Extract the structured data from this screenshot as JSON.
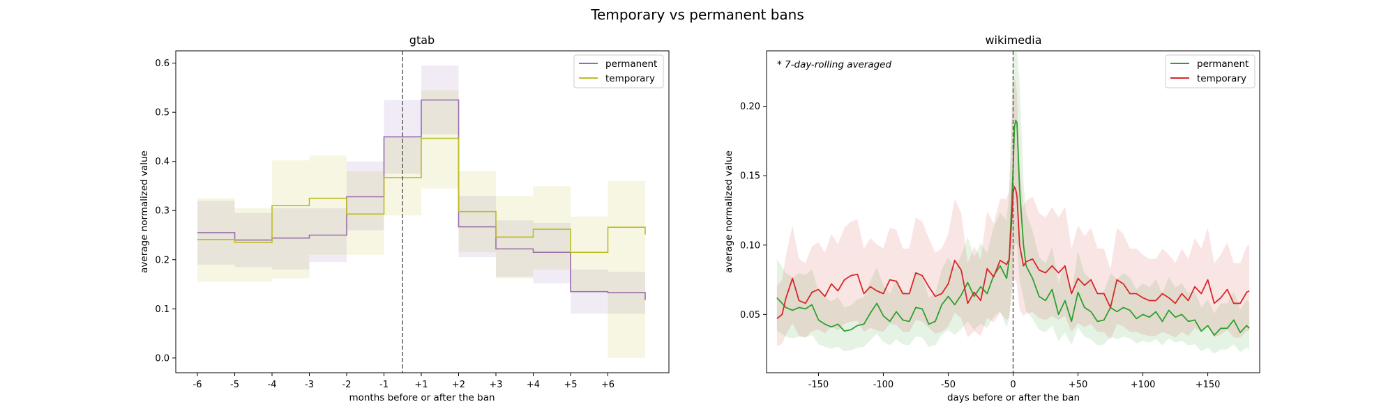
{
  "figure_title": "Temporary vs permanent bans",
  "colors": {
    "gtab_permanent": "#9467bd",
    "gtab_temporary": "#bcbd22",
    "wiki_permanent": "#2ca02c",
    "wiki_temporary": "#d62728"
  },
  "chart_data": [
    {
      "type": "line",
      "title": "gtab",
      "xlabel": "months before or after the ban",
      "ylabel": "average normalized value",
      "categories": [
        "-6",
        "-5",
        "-4",
        "-3",
        "-2",
        "-1",
        "+1",
        "+2",
        "+3",
        "+4",
        "+5",
        "+6"
      ],
      "ylim": [
        -0.03,
        0.625
      ],
      "yticks": [
        "0.0",
        "0.1",
        "0.2",
        "0.3",
        "0.4",
        "0.5",
        "0.6"
      ],
      "marker_line": "ban",
      "step": true,
      "legend": "top-right",
      "series": [
        {
          "name": "permanent",
          "values": [
            0.255,
            0.24,
            0.244,
            0.25,
            0.328,
            0.45,
            0.525,
            0.267,
            0.222,
            0.215,
            0.135,
            0.133
          ],
          "lower": [
            0.19,
            0.185,
            0.18,
            0.195,
            0.26,
            0.375,
            0.455,
            0.205,
            0.165,
            0.152,
            0.09,
            0.09
          ],
          "upper": [
            0.32,
            0.295,
            0.305,
            0.305,
            0.4,
            0.525,
            0.595,
            0.33,
            0.28,
            0.275,
            0.18,
            0.175
          ]
        },
        {
          "name": "temporary",
          "values": [
            0.241,
            0.235,
            0.31,
            0.325,
            0.293,
            0.367,
            0.447,
            0.298,
            0.246,
            0.262,
            0.215,
            0.266
          ],
          "lower": [
            0.155,
            0.155,
            0.162,
            0.21,
            0.21,
            0.29,
            0.345,
            0.215,
            0.162,
            0.18,
            0.135,
            0.0
          ],
          "upper": [
            0.325,
            0.305,
            0.402,
            0.412,
            0.38,
            0.45,
            0.545,
            0.38,
            0.33,
            0.35,
            0.288,
            0.36
          ]
        }
      ]
    },
    {
      "type": "line",
      "title": "wikimedia",
      "xlabel": "days before or after the ban",
      "ylabel": "average normalized value",
      "annotation": "* 7-day-rolling averaged",
      "xlim": [
        -190,
        190
      ],
      "ylim": [
        0.008,
        0.24
      ],
      "xticks": [
        -150,
        -100,
        -50,
        0,
        50,
        100,
        150
      ],
      "xtick_labels": [
        "-150",
        "-100",
        "-50",
        "0",
        "+50",
        "+100",
        "+150"
      ],
      "yticks": [
        0.05,
        0.1,
        0.15,
        0.2
      ],
      "ytick_labels": [
        "0.05",
        "0.10",
        "0.15",
        "0.20"
      ],
      "marker_line": 0,
      "legend": "top-right",
      "series": [
        {
          "name": "permanent",
          "x": [
            -182,
            -175,
            -170,
            -165,
            -160,
            -155,
            -150,
            -145,
            -140,
            -135,
            -130,
            -125,
            -120,
            -115,
            -110,
            -105,
            -100,
            -95,
            -90,
            -85,
            -80,
            -75,
            -70,
            -65,
            -60,
            -55,
            -50,
            -45,
            -40,
            -35,
            -30,
            -25,
            -20,
            -15,
            -10,
            -5,
            -3,
            -1,
            0,
            1,
            2,
            3,
            5,
            8,
            10,
            15,
            20,
            25,
            30,
            35,
            40,
            45,
            50,
            55,
            60,
            65,
            70,
            75,
            80,
            85,
            90,
            95,
            100,
            105,
            110,
            115,
            120,
            125,
            130,
            135,
            140,
            145,
            150,
            155,
            160,
            165,
            170,
            175,
            180,
            182
          ],
          "values": [
            0.062,
            0.055,
            0.053,
            0.055,
            0.054,
            0.057,
            0.046,
            0.043,
            0.041,
            0.043,
            0.038,
            0.039,
            0.042,
            0.043,
            0.051,
            0.058,
            0.049,
            0.045,
            0.052,
            0.046,
            0.045,
            0.055,
            0.054,
            0.043,
            0.045,
            0.057,
            0.063,
            0.057,
            0.064,
            0.073,
            0.063,
            0.07,
            0.065,
            0.078,
            0.085,
            0.076,
            0.09,
            0.132,
            0.155,
            0.185,
            0.19,
            0.188,
            0.14,
            0.1,
            0.085,
            0.076,
            0.063,
            0.06,
            0.068,
            0.05,
            0.06,
            0.045,
            0.066,
            0.055,
            0.052,
            0.045,
            0.046,
            0.055,
            0.052,
            0.055,
            0.053,
            0.047,
            0.05,
            0.048,
            0.052,
            0.045,
            0.053,
            0.048,
            0.05,
            0.045,
            0.046,
            0.038,
            0.042,
            0.035,
            0.04,
            0.04,
            0.046,
            0.037,
            0.042,
            0.04
          ]
        },
        {
          "name": "temporary",
          "x": [
            -182,
            -178,
            -175,
            -170,
            -165,
            -160,
            -155,
            -150,
            -145,
            -140,
            -135,
            -130,
            -125,
            -120,
            -115,
            -110,
            -105,
            -100,
            -95,
            -90,
            -85,
            -80,
            -75,
            -70,
            -65,
            -60,
            -55,
            -50,
            -45,
            -40,
            -35,
            -30,
            -25,
            -20,
            -15,
            -10,
            -5,
            -3,
            -1,
            0,
            1,
            2,
            3,
            5,
            8,
            10,
            15,
            20,
            25,
            30,
            35,
            40,
            45,
            50,
            55,
            60,
            65,
            70,
            75,
            80,
            85,
            90,
            95,
            100,
            105,
            110,
            115,
            120,
            125,
            130,
            135,
            140,
            145,
            150,
            155,
            160,
            165,
            170,
            175,
            180,
            182
          ],
          "values": [
            0.047,
            0.05,
            0.062,
            0.076,
            0.06,
            0.058,
            0.066,
            0.068,
            0.063,
            0.072,
            0.067,
            0.075,
            0.078,
            0.079,
            0.065,
            0.07,
            0.067,
            0.065,
            0.075,
            0.074,
            0.065,
            0.065,
            0.08,
            0.078,
            0.07,
            0.063,
            0.065,
            0.072,
            0.089,
            0.082,
            0.058,
            0.066,
            0.06,
            0.083,
            0.077,
            0.089,
            0.086,
            0.09,
            0.12,
            0.138,
            0.142,
            0.14,
            0.135,
            0.1,
            0.085,
            0.088,
            0.09,
            0.082,
            0.08,
            0.085,
            0.08,
            0.085,
            0.065,
            0.076,
            0.071,
            0.075,
            0.065,
            0.065,
            0.055,
            0.075,
            0.072,
            0.065,
            0.065,
            0.062,
            0.06,
            0.06,
            0.065,
            0.062,
            0.058,
            0.065,
            0.06,
            0.07,
            0.065,
            0.075,
            0.058,
            0.062,
            0.068,
            0.058,
            0.058,
            0.066,
            0.067
          ]
        }
      ]
    }
  ]
}
